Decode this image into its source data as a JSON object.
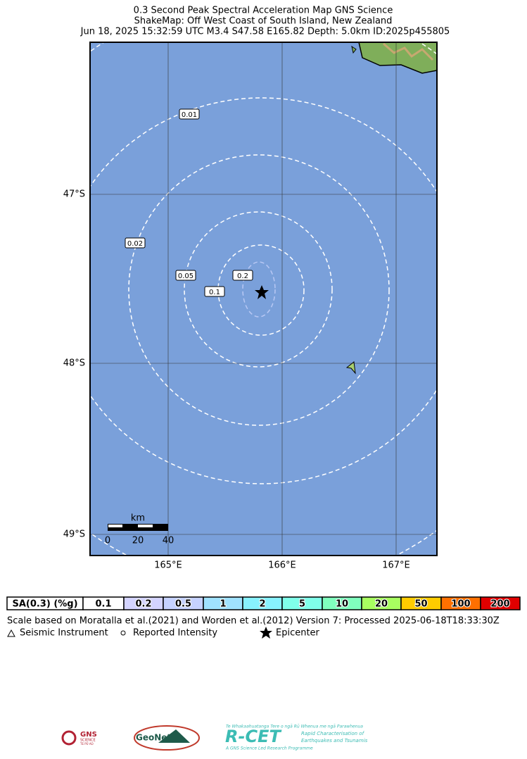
{
  "title": [
    "0.3 Second Peak Spectral Acceleration Map GNS Science",
    "ShakeMap: Off West Coast of South Island, New Zealand",
    "Jun 18, 2025 15:32:59 UTC M3.4 S47.58 E165.82 Depth: 5.0km ID:2025p455805"
  ],
  "map": {
    "lat_labels": [
      "47°S",
      "48°S",
      "49°S"
    ],
    "lon_labels": [
      "165°E",
      "166°E",
      "167°E"
    ],
    "contour_labels": [
      "0.01",
      "0.02",
      "0.05",
      "0.1",
      "0.2"
    ],
    "scale_bar": {
      "unit": "km",
      "labels": [
        "0",
        "20",
        "40"
      ]
    }
  },
  "colorbar": {
    "label": "SA(0.3) (%g)",
    "bins": [
      {
        "label": "0.1",
        "color": "#ffffff"
      },
      {
        "label": "0.2",
        "color": "#d4d4ff"
      },
      {
        "label": "0.5",
        "color": "#c6d2ff"
      },
      {
        "label": "1",
        "color": "#a0e2ff"
      },
      {
        "label": "2",
        "color": "#88f2ff"
      },
      {
        "label": "5",
        "color": "#80ffea"
      },
      {
        "label": "10",
        "color": "#80ffbe"
      },
      {
        "label": "20",
        "color": "#a8ff60"
      },
      {
        "label": "50",
        "color": "#ffcc00"
      },
      {
        "label": "100",
        "color": "#ff7000"
      },
      {
        "label": "200",
        "color": "#e00000"
      }
    ]
  },
  "footnote": "Scale based on Moratalla et al.(2021) and Worden et al.(2012)   Version 7: Processed 2025-06-18T18:33:30Z",
  "legend": [
    "Seismic Instrument",
    "Reported Intensity",
    "Epicenter"
  ],
  "logos": {
    "gns": [
      "GNS",
      "SCIENCE",
      "TE PŪ AO"
    ],
    "geonet": "GeoNet",
    "rcet": [
      "Te Whakaahuatanga Tere o ngā Rū Whenua me ngā Parawhenua",
      "R-CET",
      "Rapid Characterisation of",
      "Earthquakes and Tsunamis",
      "A GNS Science Led Research Programme"
    ]
  }
}
